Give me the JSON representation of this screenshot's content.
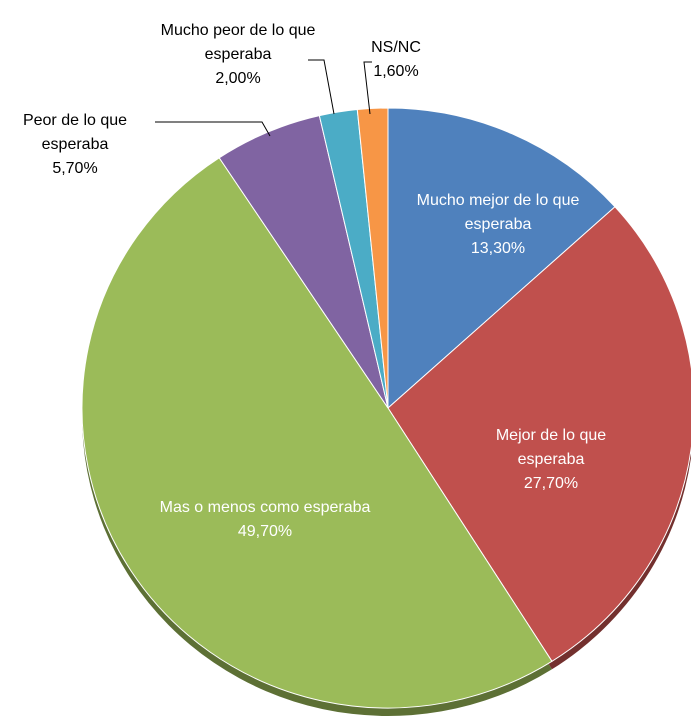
{
  "chart_data": {
    "type": "pie",
    "categories": [
      "Mucho mejor de lo que esperaba",
      "Mejor de lo que esperaba",
      "Mas o menos como esperaba",
      "Peor de lo que esperaba",
      "Mucho peor de lo que esperaba",
      "NS/NC"
    ],
    "values": [
      13.3,
      27.7,
      49.7,
      5.7,
      2.0,
      1.6
    ],
    "value_labels": [
      "13,30%",
      "27,70%",
      "49,70%",
      "5,70%",
      "2,00%",
      "1,60%"
    ],
    "colors": [
      "#4f81bd",
      "#c0504d",
      "#9bbb59",
      "#8064a2",
      "#4bacc6",
      "#f79646"
    ]
  }
}
